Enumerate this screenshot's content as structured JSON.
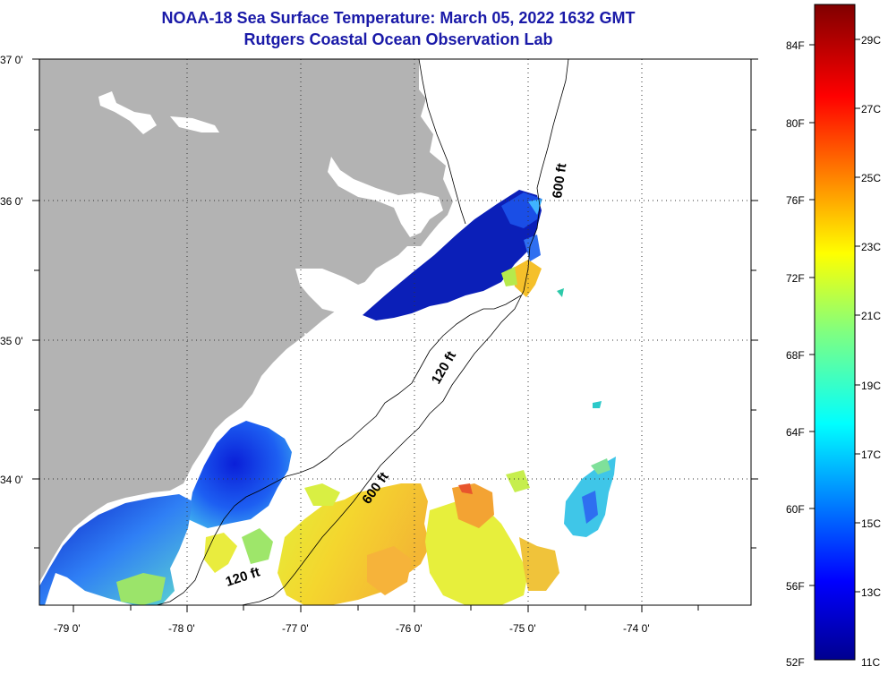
{
  "title": "NOAA-18 Sea Surface Temperature:  March 05, 2022 1632 GMT",
  "subtitle": "Rutgers Coastal Ocean Observation Lab",
  "lat_labels": [
    "37 0'",
    "36 0'",
    "35 0'",
    "34 0'"
  ],
  "lon_labels": [
    "-79 0'",
    "-78 0'",
    "-77 0'",
    "-76 0'",
    "-75 0'",
    "-74 0'"
  ],
  "contours": {
    "c600_north": "600 ft",
    "c120": "120 ft",
    "c600_south": "600 ft",
    "c120_south": "120 ft"
  },
  "colorbar": {
    "fahrenheit": [
      "84F",
      "80F",
      "76F",
      "72F",
      "68F",
      "64F",
      "60F",
      "56F",
      "52F"
    ],
    "celsius": [
      "29C",
      "27C",
      "25C",
      "23C",
      "21C",
      "19C",
      "17C",
      "15C",
      "13C",
      "11C"
    ]
  },
  "colors": {
    "land": "#b3b3b3",
    "ocean_nodata": "#ffffff",
    "title": "#1a1aa8"
  }
}
